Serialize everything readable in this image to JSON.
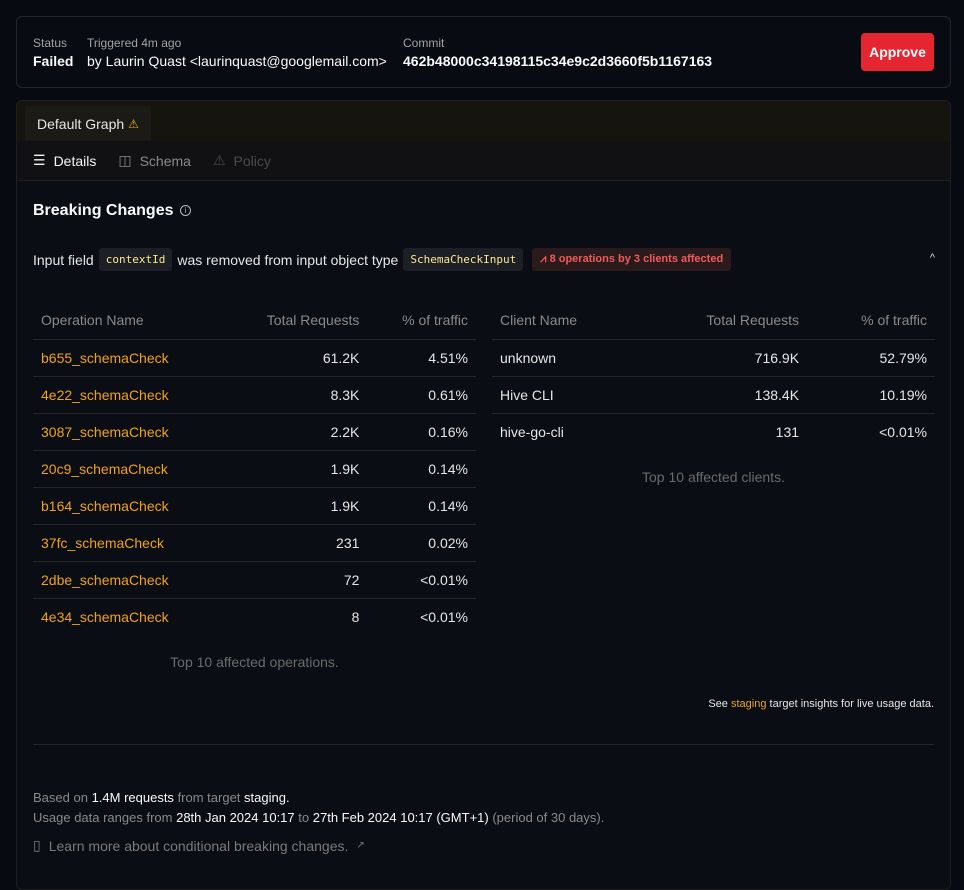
{
  "header": {
    "status_label": "Status",
    "status_value": "Failed",
    "triggered_label": "Triggered 4m ago",
    "triggered_value": "by Laurin Quast <laurinquast@googlemail.com>",
    "commit_label": "Commit",
    "commit_value": "462b48000c34198115c34e9c2d3660f5b1167163",
    "approve_label": "Approve"
  },
  "tabs": [
    {
      "label": "Default Graph",
      "warning": "⚠"
    }
  ],
  "subtabs": [
    {
      "label": "Details",
      "icon": "list-icon",
      "active": true
    },
    {
      "label": "Schema",
      "icon": "columns-icon",
      "active": false
    },
    {
      "label": "Policy",
      "icon": "warning-icon",
      "active": false,
      "disabled": true
    }
  ],
  "breaking": {
    "title": "Breaking Changes",
    "change": {
      "prefix": "Input field",
      "field": "contextId",
      "middle": "was removed from input object type",
      "type": "SchemaCheckInput",
      "badge": "8 operations by 3 clients affected"
    }
  },
  "operations": {
    "headers": [
      "Operation Name",
      "Total Requests",
      "% of traffic"
    ],
    "rows": [
      [
        "b655_schemaCheck",
        "61.2K",
        "4.51%"
      ],
      [
        "4e22_schemaCheck",
        "8.3K",
        "0.61%"
      ],
      [
        "3087_schemaCheck",
        "2.2K",
        "0.16%"
      ],
      [
        "20c9_schemaCheck",
        "1.9K",
        "0.14%"
      ],
      [
        "b164_schemaCheck",
        "1.9K",
        "0.14%"
      ],
      [
        "37fc_schemaCheck",
        "231",
        "0.02%"
      ],
      [
        "2dbe_schemaCheck",
        "72",
        "<0.01%"
      ],
      [
        "4e34_schemaCheck",
        "8",
        "<0.01%"
      ]
    ],
    "caption": "Top 10 affected operations."
  },
  "clients": {
    "headers": [
      "Client Name",
      "Total Requests",
      "% of traffic"
    ],
    "rows": [
      [
        "unknown",
        "716.9K",
        "52.79%"
      ],
      [
        "Hive CLI",
        "138.4K",
        "10.19%"
      ],
      [
        "hive-go-cli",
        "131",
        "<0.01%"
      ]
    ],
    "caption": "Top 10 affected clients."
  },
  "insights": {
    "prefix": "See",
    "link": "staging",
    "suffix": "target insights for live usage data."
  },
  "footer": {
    "l1a": "Based on",
    "l1b": "1.4M requests",
    "l1c": "from target",
    "l1d": "staging.",
    "l2a": "Usage data ranges from",
    "l2b": "28th Jan 2024 10:17",
    "l2c": "to",
    "l2d": "27th Feb 2024 10:17 (GMT+1)",
    "l2e": "(period of 30 days).",
    "learn": "Learn more about conditional breaking changes."
  }
}
